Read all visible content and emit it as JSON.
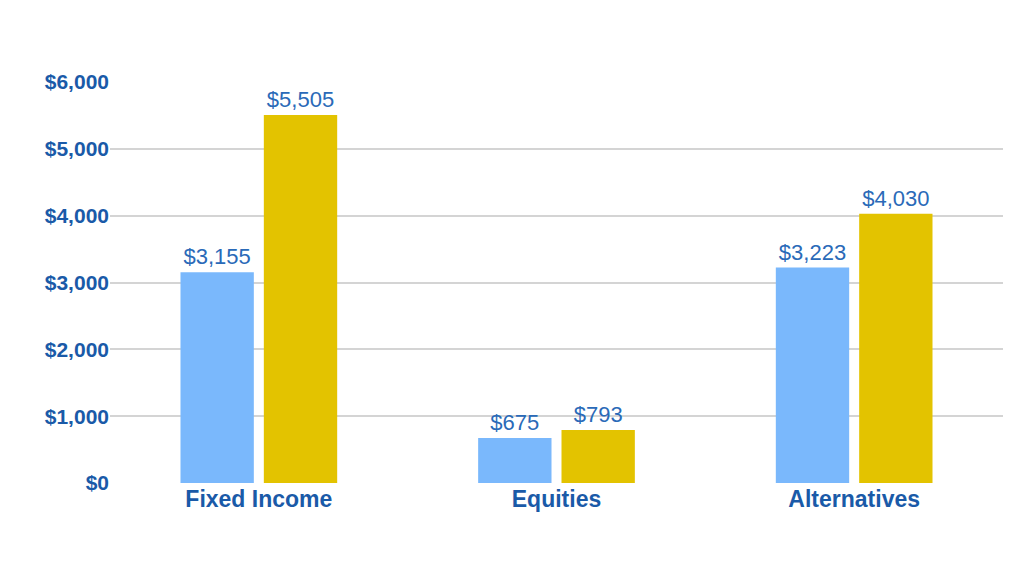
{
  "chart_data": {
    "type": "bar",
    "categories": [
      "Fixed Income",
      "Equities",
      "Alternatives"
    ],
    "series": [
      {
        "color": "#7ab8fc",
        "values": [
          3155,
          675,
          3223
        ],
        "value_labels": [
          "$3,155",
          "$675",
          "$3,223"
        ]
      },
      {
        "color": "#e3c300",
        "values": [
          5505,
          793,
          4030
        ],
        "value_labels": [
          "$5,505",
          "$793",
          "$4,030"
        ]
      }
    ],
    "ylim": [
      0,
      6000
    ],
    "yticks": [
      {
        "value": 0,
        "label": "$0"
      },
      {
        "value": 1000,
        "label": "$1,000"
      },
      {
        "value": 2000,
        "label": "$2,000"
      },
      {
        "value": 3000,
        "label": "$3,000"
      },
      {
        "value": 4000,
        "label": "$4,000"
      },
      {
        "value": 5000,
        "label": "$5,000"
      },
      {
        "value": 6000,
        "label": "$6,000"
      }
    ],
    "grid": true,
    "data_labels": true
  }
}
